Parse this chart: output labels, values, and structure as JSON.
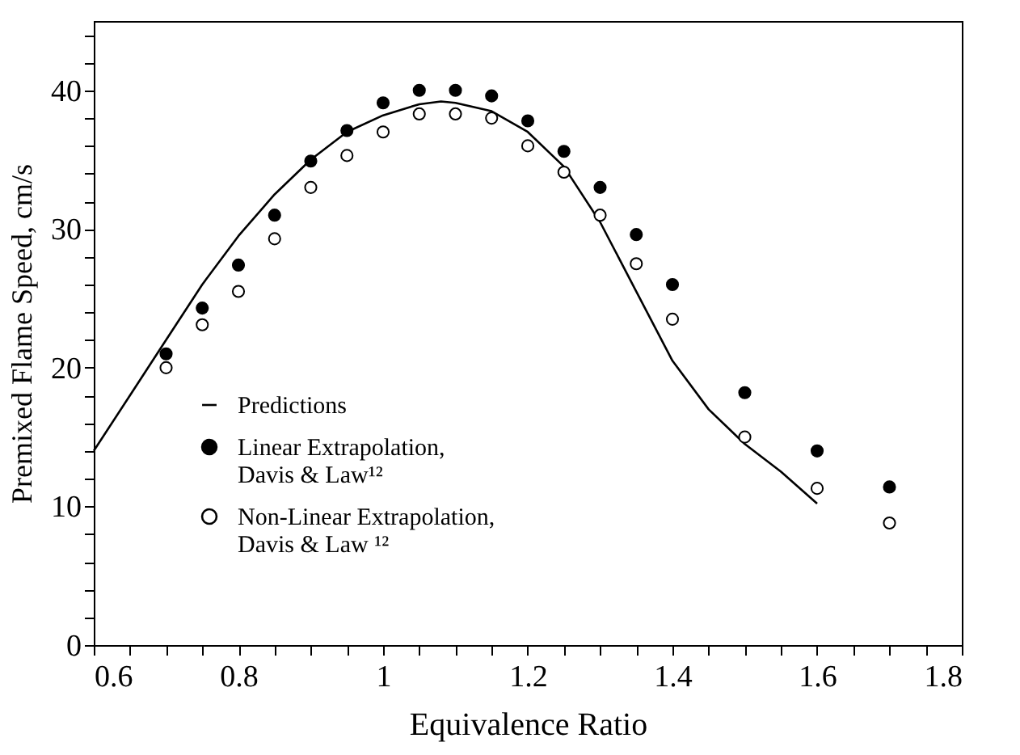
{
  "chart_data": {
    "type": "scatter",
    "xlabel": "Equivalence Ratio",
    "ylabel": "Premixed Flame Speed, cm/s",
    "xlim": [
      0.6,
      1.8
    ],
    "ylim": [
      0,
      45
    ],
    "xticks": [
      0.6,
      {
        "value": 0.65,
        "label": null
      },
      {
        "value": 0.7,
        "label": null
      },
      {
        "value": 0.75,
        "label": null
      },
      0.8,
      {
        "value": 0.85,
        "label": null
      },
      {
        "value": 0.9,
        "label": null
      },
      {
        "value": 0.95,
        "label": null
      },
      1,
      {
        "value": 1.05,
        "label": null
      },
      {
        "value": 1.1,
        "label": null
      },
      {
        "value": 1.15,
        "label": null
      },
      1.2,
      {
        "value": 1.25,
        "label": null
      },
      {
        "value": 1.3,
        "label": null
      },
      {
        "value": 1.35,
        "label": null
      },
      1.4,
      {
        "value": 1.45,
        "label": null
      },
      {
        "value": 1.5,
        "label": null
      },
      {
        "value": 1.55,
        "label": null
      },
      1.6,
      {
        "value": 1.65,
        "label": null
      },
      {
        "value": 1.7,
        "label": null
      },
      {
        "value": 1.75,
        "label": null
      },
      1.8
    ],
    "yticks": [
      0,
      {
        "value": 2,
        "label": null
      },
      {
        "value": 4,
        "label": null
      },
      {
        "value": 6,
        "label": null
      },
      {
        "value": 8,
        "label": null
      },
      10,
      {
        "value": 12,
        "label": null
      },
      {
        "value": 14,
        "label": null
      },
      {
        "value": 16,
        "label": null
      },
      {
        "value": 18,
        "label": null
      },
      20,
      {
        "value": 22,
        "label": null
      },
      {
        "value": 24,
        "label": null
      },
      {
        "value": 26,
        "label": null
      },
      {
        "value": 28,
        "label": null
      },
      30,
      {
        "value": 32,
        "label": null
      },
      {
        "value": 34,
        "label": null
      },
      {
        "value": 36,
        "label": null
      },
      {
        "value": 38,
        "label": null
      },
      40,
      {
        "value": 42,
        "label": null
      },
      {
        "value": 44,
        "label": null
      }
    ],
    "grid": false,
    "legend": "bottom left",
    "series": [
      {
        "name": "Predictions",
        "type": "line",
        "color": "#000000",
        "line_style": "solid",
        "marker": "none",
        "x": [
          0.6,
          0.65,
          0.7,
          0.75,
          0.8,
          0.85,
          0.9,
          0.95,
          1.0,
          1.05,
          1.08,
          1.1,
          1.15,
          1.2,
          1.25,
          1.3,
          1.35,
          1.4,
          1.45,
          1.5,
          1.55,
          1.6
        ],
        "values": [
          14,
          18,
          22,
          26,
          29.5,
          32.5,
          35,
          37,
          38.2,
          39,
          39.2,
          39.1,
          38.5,
          37,
          34.5,
          30.5,
          25.5,
          20.5,
          17,
          14.5,
          12.5,
          10.2
        ]
      },
      {
        "name": "Linear Extrapolation, Davis & Law¹²",
        "color": "#000000",
        "marker": "circle",
        "x": [
          0.7,
          0.75,
          0.8,
          0.85,
          0.9,
          0.95,
          1.0,
          1.05,
          1.1,
          1.15,
          1.2,
          1.25,
          1.3,
          1.35,
          1.4,
          1.5,
          1.6,
          1.7
        ],
        "values": [
          21,
          24.3,
          27.4,
          31,
          34.9,
          37.1,
          39.1,
          40,
          40,
          39.6,
          37.8,
          35.6,
          33,
          29.6,
          26,
          18.2,
          14,
          11.4
        ]
      },
      {
        "name": "Non-Linear Extrapolation, Davis & Law ¹²",
        "color": "#000000",
        "marker": "circle",
        "x": [
          0.7,
          0.75,
          0.8,
          0.85,
          0.9,
          0.95,
          1.0,
          1.05,
          1.1,
          1.15,
          1.2,
          1.25,
          1.3,
          1.35,
          1.4,
          1.5,
          1.6,
          1.7
        ],
        "values": [
          20,
          23.1,
          25.5,
          29.3,
          33,
          35.3,
          37,
          38.3,
          38.3,
          38,
          36,
          34.1,
          31,
          27.5,
          23.5,
          15,
          11.3,
          8.8
        ]
      }
    ]
  }
}
